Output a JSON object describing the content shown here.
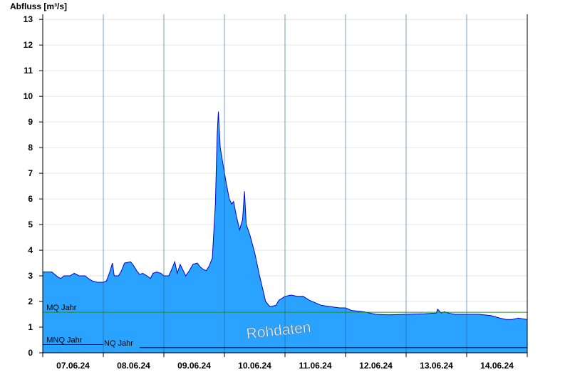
{
  "chart_data": {
    "type": "area",
    "ylabel": "Abfluss [m³/s]",
    "ylim": [
      0,
      13.2
    ],
    "yticks": [
      0,
      1,
      2,
      3,
      4,
      5,
      6,
      7,
      8,
      9,
      10,
      11,
      12,
      13
    ],
    "xlim": [
      0,
      8
    ],
    "xlabels": [
      {
        "x": 0.5,
        "label": "07.06.24"
      },
      {
        "x": 1.5,
        "label": "08.06.24"
      },
      {
        "x": 2.5,
        "label": "09.06.24"
      },
      {
        "x": 3.5,
        "label": "10.06.24"
      },
      {
        "x": 4.5,
        "label": "11.06.24"
      },
      {
        "x": 5.5,
        "label": "12.06.24"
      },
      {
        "x": 6.5,
        "label": "13.06.24"
      },
      {
        "x": 7.5,
        "label": "14.06.24"
      }
    ],
    "day_boundaries": [
      1,
      2,
      3,
      4,
      5,
      6,
      7
    ],
    "series": [
      {
        "points": [
          [
            0.0,
            3.15
          ],
          [
            0.15,
            3.15
          ],
          [
            0.25,
            2.95
          ],
          [
            0.3,
            2.9
          ],
          [
            0.35,
            3.0
          ],
          [
            0.45,
            3.0
          ],
          [
            0.52,
            3.1
          ],
          [
            0.6,
            3.0
          ],
          [
            0.7,
            3.0
          ],
          [
            0.75,
            2.9
          ],
          [
            0.82,
            2.8
          ],
          [
            0.9,
            2.75
          ],
          [
            1.0,
            2.75
          ],
          [
            1.05,
            2.8
          ],
          [
            1.1,
            3.1
          ],
          [
            1.15,
            3.5
          ],
          [
            1.18,
            3.0
          ],
          [
            1.25,
            3.0
          ],
          [
            1.3,
            3.2
          ],
          [
            1.35,
            3.5
          ],
          [
            1.45,
            3.55
          ],
          [
            1.5,
            3.4
          ],
          [
            1.55,
            3.2
          ],
          [
            1.6,
            3.05
          ],
          [
            1.65,
            3.1
          ],
          [
            1.72,
            3.0
          ],
          [
            1.78,
            2.9
          ],
          [
            1.82,
            3.1
          ],
          [
            1.88,
            3.15
          ],
          [
            1.95,
            3.1
          ],
          [
            2.0,
            3.0
          ],
          [
            2.08,
            3.0
          ],
          [
            2.12,
            3.2
          ],
          [
            2.18,
            3.55
          ],
          [
            2.22,
            3.1
          ],
          [
            2.27,
            3.45
          ],
          [
            2.32,
            3.2
          ],
          [
            2.36,
            3.0
          ],
          [
            2.42,
            3.2
          ],
          [
            2.48,
            3.45
          ],
          [
            2.55,
            3.5
          ],
          [
            2.6,
            3.35
          ],
          [
            2.65,
            3.25
          ],
          [
            2.7,
            3.2
          ],
          [
            2.75,
            3.4
          ],
          [
            2.8,
            3.7
          ],
          [
            2.85,
            5.8
          ],
          [
            2.88,
            8.5
          ],
          [
            2.9,
            9.4
          ],
          [
            2.93,
            8.0
          ],
          [
            2.98,
            7.3
          ],
          [
            3.03,
            6.6
          ],
          [
            3.08,
            6.0
          ],
          [
            3.12,
            5.8
          ],
          [
            3.15,
            5.9
          ],
          [
            3.2,
            5.3
          ],
          [
            3.25,
            4.8
          ],
          [
            3.3,
            5.2
          ],
          [
            3.33,
            6.3
          ],
          [
            3.36,
            5.0
          ],
          [
            3.42,
            4.6
          ],
          [
            3.5,
            3.9
          ],
          [
            3.58,
            3.0
          ],
          [
            3.63,
            2.5
          ],
          [
            3.68,
            2.0
          ],
          [
            3.75,
            1.8
          ],
          [
            3.85,
            1.85
          ],
          [
            3.9,
            2.05
          ],
          [
            4.0,
            2.2
          ],
          [
            4.1,
            2.25
          ],
          [
            4.2,
            2.2
          ],
          [
            4.3,
            2.2
          ],
          [
            4.4,
            2.05
          ],
          [
            4.5,
            1.95
          ],
          [
            4.6,
            1.85
          ],
          [
            4.75,
            1.8
          ],
          [
            4.9,
            1.75
          ],
          [
            5.0,
            1.75
          ],
          [
            5.1,
            1.65
          ],
          [
            5.3,
            1.6
          ],
          [
            5.5,
            1.5
          ],
          [
            5.7,
            1.48
          ],
          [
            6.0,
            1.5
          ],
          [
            6.3,
            1.52
          ],
          [
            6.5,
            1.55
          ],
          [
            6.52,
            1.7
          ],
          [
            6.58,
            1.55
          ],
          [
            6.63,
            1.6
          ],
          [
            6.7,
            1.55
          ],
          [
            6.8,
            1.5
          ],
          [
            7.0,
            1.5
          ],
          [
            7.2,
            1.5
          ],
          [
            7.4,
            1.45
          ],
          [
            7.55,
            1.35
          ],
          [
            7.65,
            1.3
          ],
          [
            7.75,
            1.3
          ],
          [
            7.85,
            1.35
          ],
          [
            8.0,
            1.3
          ]
        ],
        "fill": "#29a3ff",
        "line": "#0000cc"
      }
    ],
    "reference_lines": [
      {
        "label": "MQ Jahr",
        "y": 1.58,
        "color": "#2a8c2a",
        "label_x": 0.05,
        "segments": [
          [
            0,
            8
          ]
        ]
      },
      {
        "label": "MNQ Jahr",
        "y": 0.32,
        "color": "#000000",
        "label_x": 0.05,
        "segments": [
          [
            0,
            1.0
          ]
        ]
      },
      {
        "label": "NQ Jahr",
        "y": 0.2,
        "color": "#000000",
        "label_x": 1.0,
        "segments": [
          [
            1.6,
            8
          ]
        ]
      }
    ],
    "watermark": "Rohdaten",
    "grid": true
  }
}
